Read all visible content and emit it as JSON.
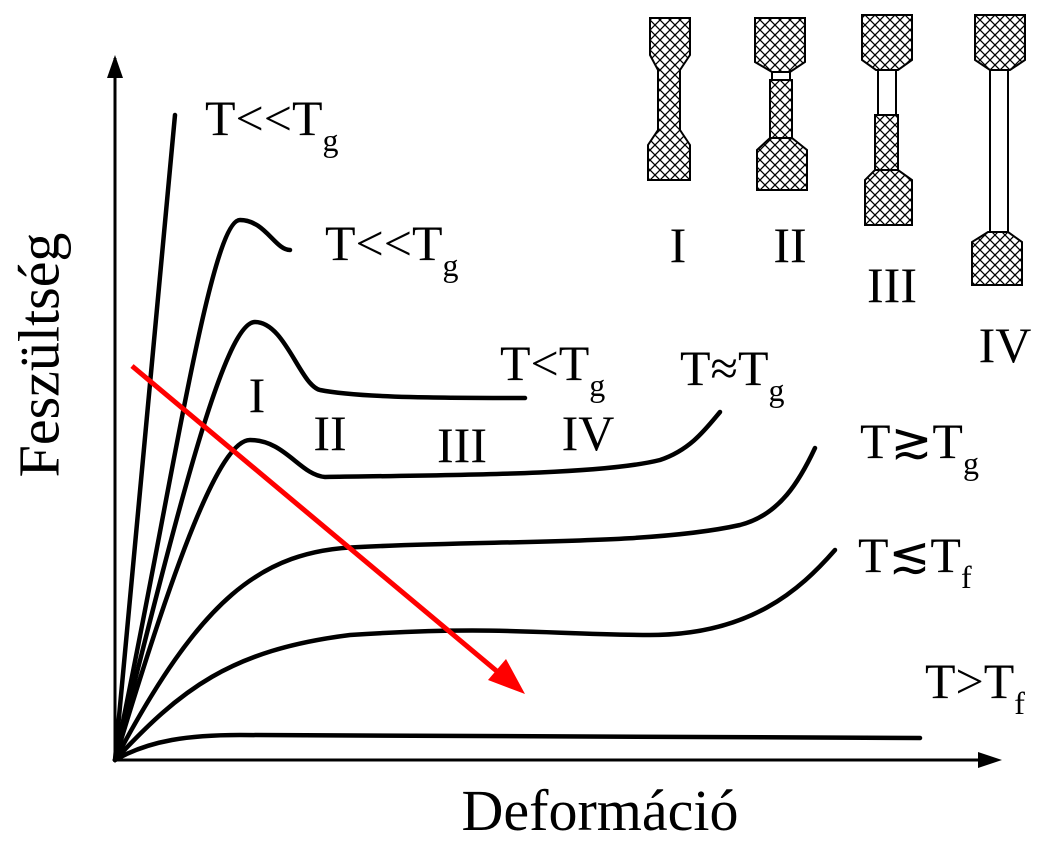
{
  "axes": {
    "y_label": "Feszültség",
    "x_label": "Deformáció"
  },
  "curves": [
    {
      "main": "T<<T",
      "sub": "g"
    },
    {
      "main": "T<<T",
      "sub": "g"
    },
    {
      "main": "T<T",
      "sub": "g"
    },
    {
      "main": "T≈T",
      "sub": "g"
    },
    {
      "main": "T≳T",
      "sub": "g"
    },
    {
      "main": "T≲T",
      "sub": "f"
    },
    {
      "main": "T>T",
      "sub": "f"
    }
  ],
  "regions": [
    "I",
    "II",
    "III",
    "IV"
  ],
  "specimens": [
    "I",
    "II",
    "III",
    "IV"
  ]
}
